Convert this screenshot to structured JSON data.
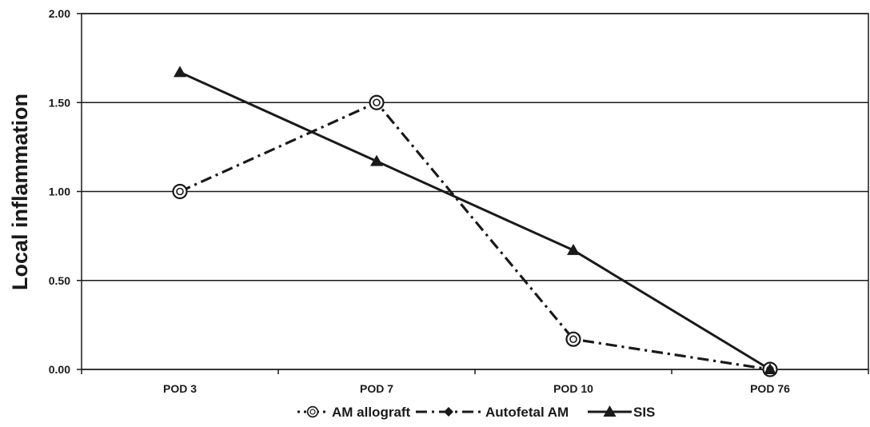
{
  "chart_data": {
    "type": "line",
    "title": "",
    "xlabel": "",
    "ylabel": "Local inflammation",
    "categories": [
      "POD 3",
      "POD 7",
      "POD 10",
      "POD 76"
    ],
    "ylim": [
      0,
      2
    ],
    "y_ticks": [
      "0.00",
      "0.50",
      "1.00",
      "1.50",
      "2.00"
    ],
    "grid": "horizontal",
    "legend_position": "bottom",
    "series": [
      {
        "name": "AM allograft",
        "values": [
          1.0,
          1.5,
          0.17,
          0.0
        ],
        "marker": "open-circle",
        "line_style": "dash-dot",
        "color": "#1a1a1a"
      },
      {
        "name": "Autofetal AM",
        "values": [
          1.0,
          1.5,
          0.17,
          0.0
        ],
        "marker": "diamond",
        "line_style": "dash-dot",
        "color": "#1a1a1a"
      },
      {
        "name": "SIS",
        "values": [
          1.67,
          1.17,
          0.67,
          0.0
        ],
        "marker": "triangle",
        "line_style": "solid",
        "color": "#1a1a1a"
      }
    ],
    "legend_labels": [
      "AM allograft",
      "Autofetal AM",
      "SIS"
    ]
  }
}
